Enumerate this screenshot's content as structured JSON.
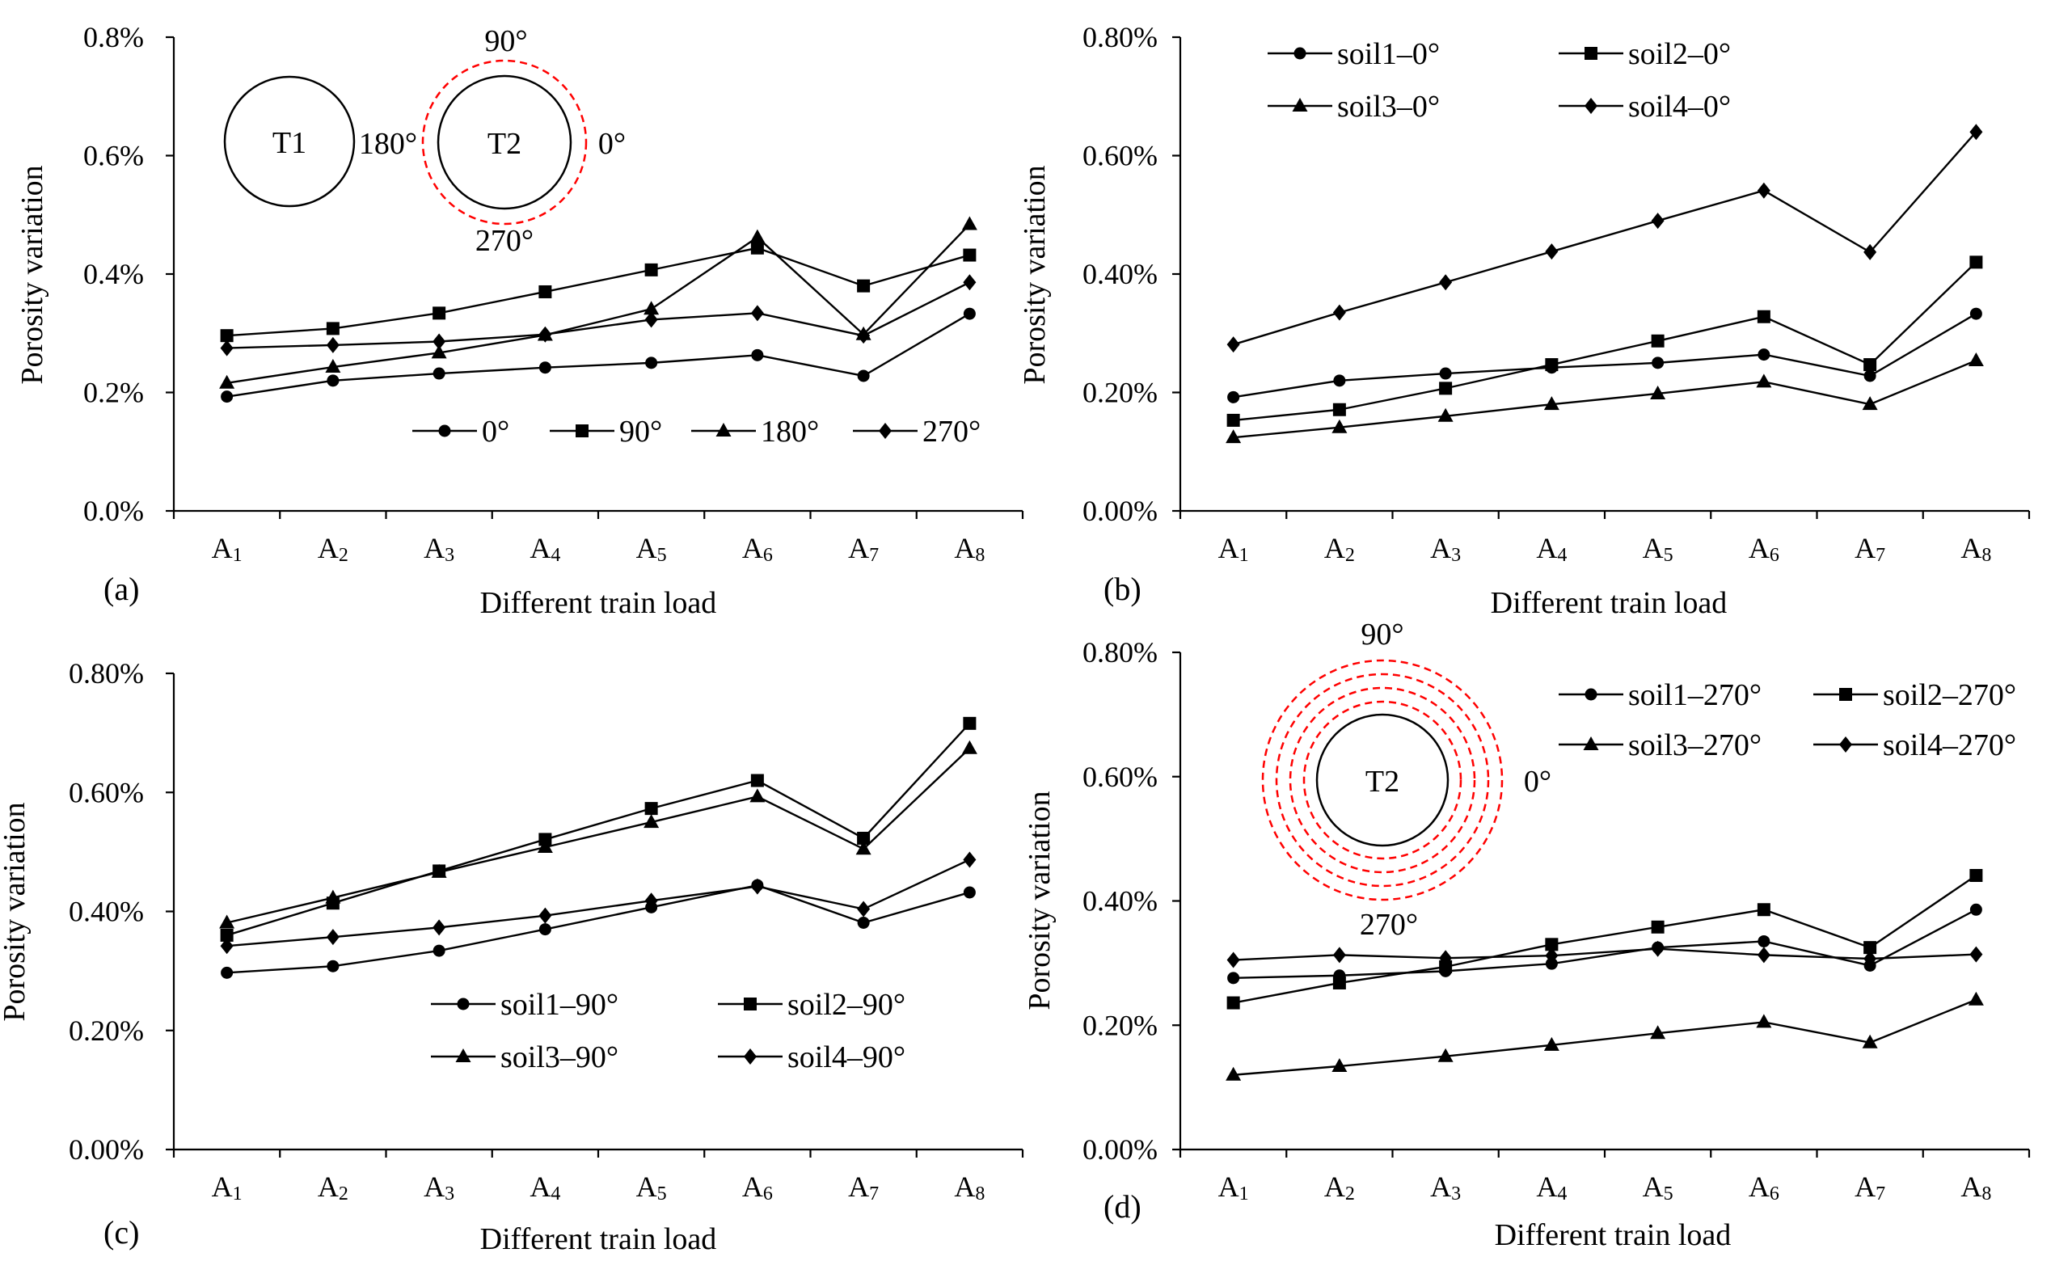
{
  "chart_data": [
    {
      "id": "a",
      "type": "line",
      "panel_label": "(a)",
      "xlabel": "Different train load",
      "ylabel": "Porosity variation",
      "categories": [
        {
          "main": "A",
          "sub": "1"
        },
        {
          "main": "A",
          "sub": "2"
        },
        {
          "main": "A",
          "sub": "3"
        },
        {
          "main": "A",
          "sub": "4"
        },
        {
          "main": "A",
          "sub": "5"
        },
        {
          "main": "A",
          "sub": "6"
        },
        {
          "main": "A",
          "sub": "7"
        },
        {
          "main": "A",
          "sub": "8"
        }
      ],
      "ylim": [
        0,
        0.8
      ],
      "yticks": [
        0.0,
        0.2,
        0.4,
        0.6,
        0.8
      ],
      "ytick_labels": [
        "0.0%",
        "0.2%",
        "0.4%",
        "0.6%",
        "0.8%"
      ],
      "legend_position": "bottom-right",
      "legend_layout": "row",
      "series": [
        {
          "name": "0°",
          "marker": "circle",
          "values": [
            0.193,
            0.22,
            0.232,
            0.242,
            0.25,
            0.263,
            0.228,
            0.333
          ]
        },
        {
          "name": "90°",
          "marker": "square",
          "values": [
            0.296,
            0.308,
            0.334,
            0.37,
            0.407,
            0.444,
            0.38,
            0.432
          ]
        },
        {
          "name": "180°",
          "marker": "triangle",
          "values": [
            0.216,
            0.243,
            0.267,
            0.297,
            0.341,
            0.462,
            0.298,
            0.484
          ]
        },
        {
          "name": "270°",
          "marker": "diamond",
          "values": [
            0.275,
            0.28,
            0.286,
            0.298,
            0.323,
            0.334,
            0.296,
            0.386
          ]
        }
      ],
      "diagram": {
        "tunnels": [
          "T1",
          "T2"
        ],
        "angles": {
          "top": "90°",
          "left": "180°",
          "right": "0°",
          "bottom": "270°"
        },
        "rings": 1
      }
    },
    {
      "id": "b",
      "type": "line",
      "panel_label": "(b)",
      "xlabel": "Different train load",
      "ylabel": "Porosity variation",
      "categories": [
        {
          "main": "A",
          "sub": "1"
        },
        {
          "main": "A",
          "sub": "2"
        },
        {
          "main": "A",
          "sub": "3"
        },
        {
          "main": "A",
          "sub": "4"
        },
        {
          "main": "A",
          "sub": "5"
        },
        {
          "main": "A",
          "sub": "6"
        },
        {
          "main": "A",
          "sub": "7"
        },
        {
          "main": "A",
          "sub": "8"
        }
      ],
      "ylim": [
        0,
        0.8
      ],
      "yticks": [
        0.0,
        0.2,
        0.4,
        0.6,
        0.8
      ],
      "ytick_labels": [
        "0.00%",
        "0.20%",
        "0.40%",
        "0.60%",
        "0.80%"
      ],
      "legend_position": "top-left",
      "legend_layout": "grid",
      "series": [
        {
          "name": "soil1–0°",
          "marker": "circle",
          "values": [
            0.192,
            0.22,
            0.232,
            0.242,
            0.25,
            0.264,
            0.228,
            0.333
          ]
        },
        {
          "name": "soil2–0°",
          "marker": "square",
          "values": [
            0.153,
            0.171,
            0.207,
            0.247,
            0.287,
            0.328,
            0.247,
            0.42
          ]
        },
        {
          "name": "soil3–0°",
          "marker": "triangle",
          "values": [
            0.124,
            0.141,
            0.16,
            0.18,
            0.198,
            0.218,
            0.18,
            0.254
          ]
        },
        {
          "name": "soil4–0°",
          "marker": "diamond",
          "values": [
            0.281,
            0.335,
            0.386,
            0.438,
            0.49,
            0.541,
            0.437,
            0.64
          ]
        }
      ]
    },
    {
      "id": "c",
      "type": "line",
      "panel_label": "(c)",
      "xlabel": "Different train load",
      "ylabel": "Porosity variation",
      "categories": [
        {
          "main": "A",
          "sub": "1"
        },
        {
          "main": "A",
          "sub": "2"
        },
        {
          "main": "A",
          "sub": "3"
        },
        {
          "main": "A",
          "sub": "4"
        },
        {
          "main": "A",
          "sub": "5"
        },
        {
          "main": "A",
          "sub": "6"
        },
        {
          "main": "A",
          "sub": "7"
        },
        {
          "main": "A",
          "sub": "8"
        }
      ],
      "ylim": [
        0,
        0.8
      ],
      "yticks": [
        0.0,
        0.2,
        0.4,
        0.6,
        0.8
      ],
      "ytick_labels": [
        "0.00%",
        "0.20%",
        "0.40%",
        "0.60%",
        "0.80%"
      ],
      "legend_position": "bottom-right",
      "legend_layout": "grid",
      "series": [
        {
          "name": "soil1–90°",
          "marker": "circle",
          "values": [
            0.297,
            0.308,
            0.334,
            0.37,
            0.407,
            0.444,
            0.381,
            0.432
          ]
        },
        {
          "name": "soil2–90°",
          "marker": "square",
          "values": [
            0.36,
            0.414,
            0.468,
            0.521,
            0.573,
            0.62,
            0.523,
            0.716
          ]
        },
        {
          "name": "soil3–90°",
          "marker": "triangle",
          "values": [
            0.381,
            0.423,
            0.466,
            0.508,
            0.55,
            0.593,
            0.505,
            0.674
          ]
        },
        {
          "name": "soil4–90°",
          "marker": "diamond",
          "values": [
            0.342,
            0.357,
            0.373,
            0.393,
            0.418,
            0.442,
            0.404,
            0.487
          ]
        }
      ]
    },
    {
      "id": "d",
      "type": "line",
      "panel_label": "(d)",
      "xlabel": "Different train load",
      "ylabel": "Porosity variation",
      "categories": [
        {
          "main": "A",
          "sub": "1"
        },
        {
          "main": "A",
          "sub": "2"
        },
        {
          "main": "A",
          "sub": "3"
        },
        {
          "main": "A",
          "sub": "4"
        },
        {
          "main": "A",
          "sub": "5"
        },
        {
          "main": "A",
          "sub": "6"
        },
        {
          "main": "A",
          "sub": "7"
        },
        {
          "main": "A",
          "sub": "8"
        }
      ],
      "ylim": [
        0,
        0.8
      ],
      "yticks": [
        0.0,
        0.2,
        0.4,
        0.6,
        0.8
      ],
      "ytick_labels": [
        "0.00%",
        "0.20%",
        "0.40%",
        "0.60%",
        "0.80%"
      ],
      "legend_position": "top-right",
      "legend_layout": "grid",
      "series": [
        {
          "name": "soil1–270°",
          "marker": "circle",
          "values": [
            0.276,
            0.28,
            0.287,
            0.299,
            0.325,
            0.335,
            0.296,
            0.386
          ]
        },
        {
          "name": "soil2–270°",
          "marker": "square",
          "values": [
            0.236,
            0.268,
            0.294,
            0.33,
            0.358,
            0.386,
            0.325,
            0.441
          ]
        },
        {
          "name": "soil3–270°",
          "marker": "triangle",
          "values": [
            0.12,
            0.134,
            0.15,
            0.168,
            0.187,
            0.205,
            0.172,
            0.241
          ]
        },
        {
          "name": "soil4–270°",
          "marker": "diamond",
          "values": [
            0.305,
            0.313,
            0.308,
            0.312,
            0.323,
            0.313,
            0.307,
            0.314
          ]
        }
      ],
      "diagram": {
        "tunnels": [
          "T2"
        ],
        "angles": {
          "top": "90°",
          "right": "0°",
          "bottom": "270°"
        },
        "rings": 4
      }
    }
  ]
}
